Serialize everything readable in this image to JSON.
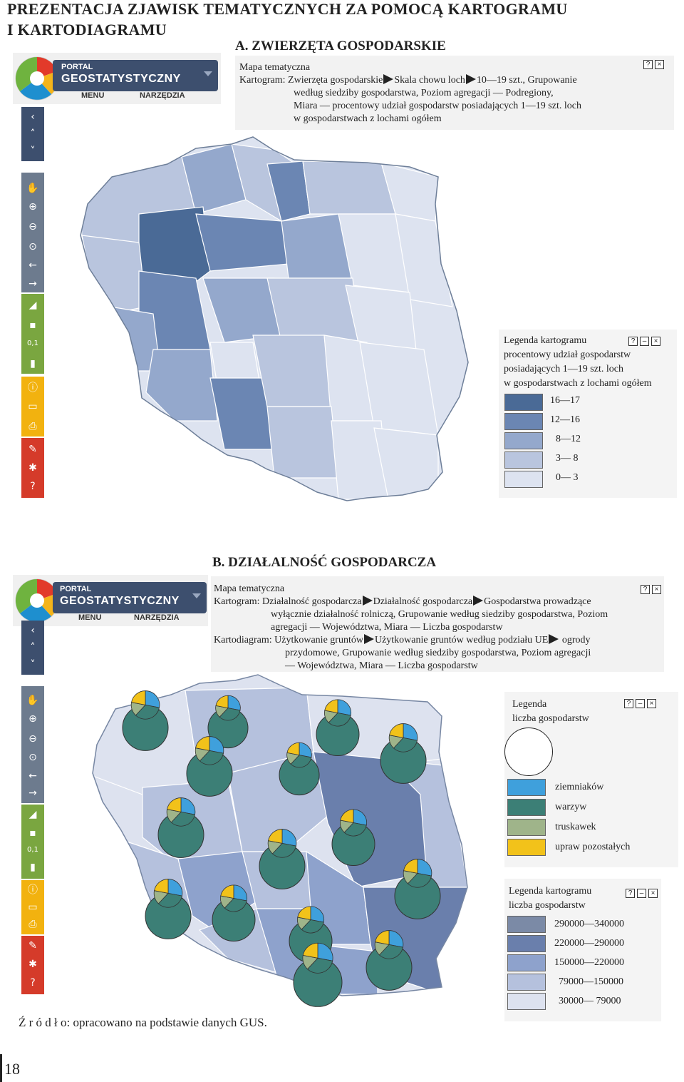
{
  "page_title": {
    "line1": "PREZENTACJA ZJAWISK TEMATYCZNYCH ZA POMOCĄ KARTOGRAMU",
    "line2": "I KARTODIAGRAMU"
  },
  "section_a": {
    "heading": "A. ZWIERZĘTA GOSPODARSKIE",
    "portal": {
      "logo_line1": "PORTAL",
      "logo_line2": "GEOSTATYSTYCZNY",
      "menu": "MENU",
      "tools": "NARZĘDZIA"
    },
    "desc": {
      "line1": "Mapa tematyczna",
      "line2_a": "Kartogram: Zwierzęta gospodarskie",
      "line2_b": "Skala chowu loch",
      "line2_c": "10—19 szt., Grupowanie",
      "line3": "według siedziby gospodarstwa, Poziom agregacji — Podregiony,",
      "line4": "Miara — procentowy udział gospodarstw posiadających 1—19 szt. loch",
      "line5": "w gospodarstwach z lochami ogółem"
    },
    "legend": {
      "title": "Legenda kartogramu",
      "subtitle1": "procentowy udział gospodarstw",
      "subtitle2": "posiadających 1—19 szt. loch",
      "subtitle3": "w gospodarstwach z lochami ogółem",
      "classes": [
        {
          "label": "16—17",
          "color": "#4a6a96"
        },
        {
          "label": "12—16",
          "color": "#6b86b3"
        },
        {
          "label": "8—12",
          "color": "#94a8cc"
        },
        {
          "label": "3— 8",
          "color": "#b9c5de"
        },
        {
          "label": "0— 3",
          "color": "#dde3f0"
        }
      ]
    }
  },
  "section_b": {
    "heading": "B. DZIAŁALNOŚĆ GOSPODARCZA",
    "portal": {
      "logo_line1": "PORTAL",
      "logo_line2": "GEOSTATYSTYCZNY",
      "menu": "MENU",
      "tools": "NARZĘDZIA"
    },
    "desc": {
      "line1": "Mapa tematyczna",
      "line2_a": "Kartogram: Działalność gospodarcza",
      "line2_b": "Działalność gospodarcza",
      "line2_c": "Gospodarstwa prowadzące",
      "line3": "wyłącznie działalność rolniczą, Grupowanie według siedziby gospodarstwa, Poziom",
      "line4": "agregacji — Województwa, Miara — Liczba gospodarstw",
      "line5_a": "Kartodiagram: Użytkowanie gruntów",
      "line5_b": "Użytkowanie gruntów według podziału UE",
      "line5_c": "ogrody",
      "line6": "przydomowe, Grupowanie  według siedziby gospodarstwa, Poziom agregacji",
      "line7": "— Województwa, Miara — Liczba gospodarstw"
    },
    "legend_diagram": {
      "title": "Legenda",
      "subtitle": "liczba gospodarstw",
      "items": [
        {
          "label": "ziemniaków",
          "color": "#3fa0dc"
        },
        {
          "label": "warzyw",
          "color": "#3c7f76"
        },
        {
          "label": "truskawek",
          "color": "#9fb48a"
        },
        {
          "label": "upraw pozostałych",
          "color": "#f2c21a"
        }
      ]
    },
    "legend_kartogram": {
      "title": "Legenda kartogramu",
      "subtitle": "liczba gospodarstw",
      "classes": [
        {
          "label": "290000—340000",
          "color": "#7b8aa6"
        },
        {
          "label": "220000—290000",
          "color": "#6a7fac"
        },
        {
          "label": "150000—220000",
          "color": "#8ea2cc"
        },
        {
          "label": "79000—150000",
          "color": "#b5c1dd"
        },
        {
          "label": "30000—   79000",
          "color": "#dde2ef"
        }
      ]
    },
    "source": "Ź r ó d ł o: opracowano na podstawie danych GUS."
  },
  "page_number": "18",
  "icons": {
    "help": "?",
    "minimize": "–",
    "close": "×"
  }
}
